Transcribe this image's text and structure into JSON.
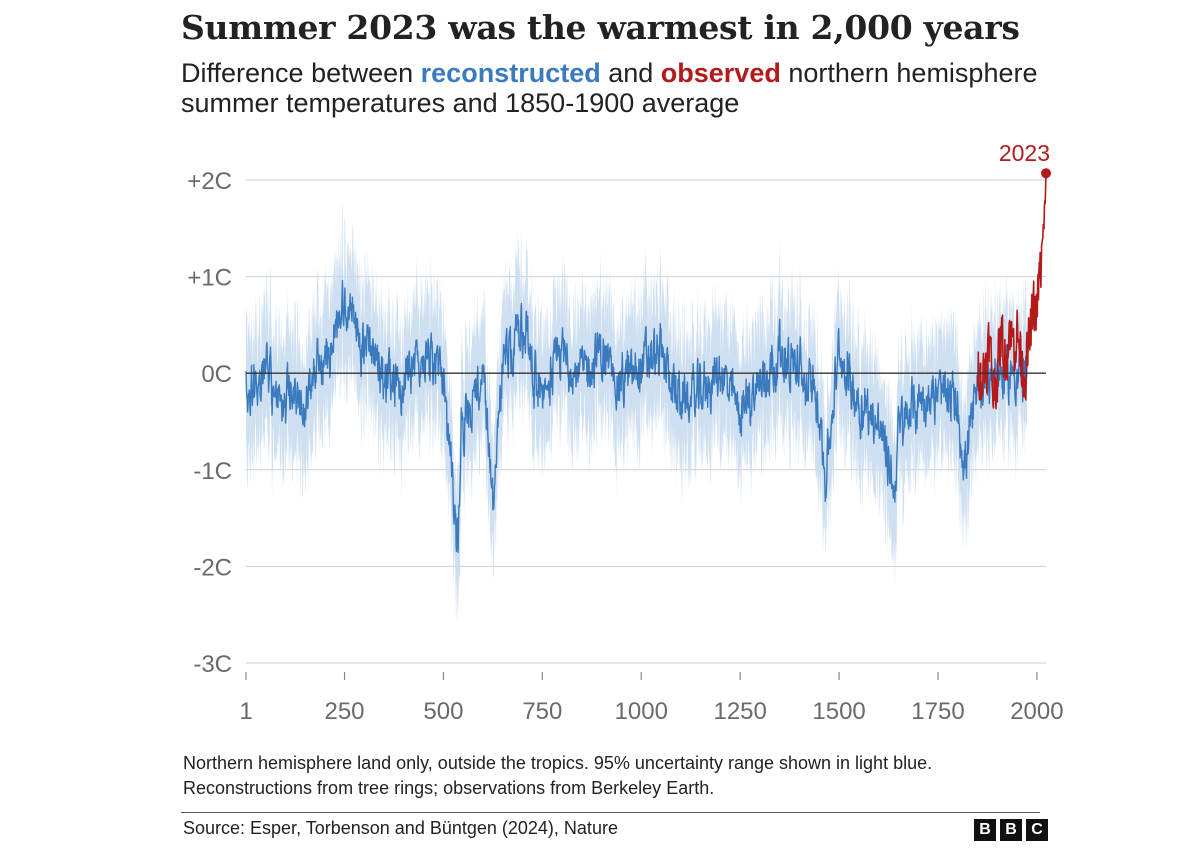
{
  "header": {
    "title": "Summer 2023 was the warmest in 2,000 years",
    "subtitle_pre": "Difference between ",
    "subtitle_reconstructed": "reconstructed",
    "subtitle_mid": " and ",
    "subtitle_observed": "observed",
    "subtitle_post": " northern hemisphere summer temperatures and 1850-1900 average"
  },
  "chart_data": {
    "type": "line",
    "title": "Summer 2023 was the warmest in 2,000 years",
    "xlabel": "",
    "ylabel": "",
    "xlim": [
      1,
      2023
    ],
    "ylim": [
      -3,
      2
    ],
    "x_ticks": [
      1,
      250,
      500,
      750,
      1000,
      1250,
      1500,
      1750,
      2000
    ],
    "x_tick_labels": [
      "1",
      "250",
      "500",
      "750",
      "1000",
      "1250",
      "1500",
      "1750",
      "2000"
    ],
    "y_ticks": [
      2,
      1,
      0,
      -1,
      -2,
      -3
    ],
    "y_tick_labels": [
      "+2C",
      "+1C",
      "0C",
      "-1C",
      "-2C",
      "-3C"
    ],
    "grid": true,
    "series": [
      {
        "name": "reconstructed",
        "color": "#3a7abf",
        "band_color": "#c9dcef",
        "x": [
          1,
          50,
          100,
          150,
          200,
          250,
          300,
          350,
          400,
          450,
          500,
          536,
          545,
          600,
          626,
          650,
          700,
          750,
          800,
          850,
          900,
          950,
          1000,
          1050,
          1100,
          1150,
          1200,
          1250,
          1300,
          1350,
          1400,
          1450,
          1465,
          1500,
          1550,
          1600,
          1641,
          1650,
          1700,
          1750,
          1800,
          1816,
          1850,
          1875
        ],
        "y": [
          -0.2,
          0.0,
          -0.3,
          -0.2,
          0.1,
          0.8,
          0.2,
          0.0,
          -0.1,
          0.2,
          0.0,
          -1.8,
          -0.5,
          -0.1,
          -1.4,
          0.1,
          0.5,
          -0.2,
          0.2,
          0.0,
          0.2,
          -0.1,
          0.1,
          0.2,
          -0.3,
          -0.2,
          0.0,
          -0.4,
          -0.1,
          0.2,
          0.0,
          -0.3,
          -1.1,
          0.2,
          -0.3,
          -0.5,
          -1.2,
          -0.6,
          -0.3,
          -0.2,
          -0.3,
          -1.0,
          -0.2,
          0.0
        ],
        "uncertainty": "95% range shown in light blue"
      },
      {
        "name": "observed",
        "color": "#b51a1a",
        "x": [
          1850,
          1860,
          1870,
          1880,
          1890,
          1900,
          1910,
          1920,
          1930,
          1940,
          1950,
          1960,
          1970,
          1980,
          1990,
          2000,
          2010,
          2015,
          2020,
          2023
        ],
        "y": [
          0.2,
          -0.1,
          0.1,
          0.3,
          -0.2,
          0.0,
          0.4,
          0.1,
          0.5,
          0.3,
          0.4,
          0.2,
          0.0,
          0.3,
          0.6,
          0.7,
          1.1,
          1.3,
          1.6,
          2.07
        ]
      }
    ],
    "annotations": [
      {
        "label": "2023",
        "x": 2023,
        "y": 2.07
      }
    ]
  },
  "footer": {
    "note": "Northern hemisphere land only, outside the tropics. 95% uncertainty range shown in light blue. Reconstructions from tree rings; observations from Berkeley Earth.",
    "source": "Source: Esper, Torbenson and Büntgen (2024), Nature",
    "logo_letters": [
      "B",
      "B",
      "C"
    ]
  }
}
